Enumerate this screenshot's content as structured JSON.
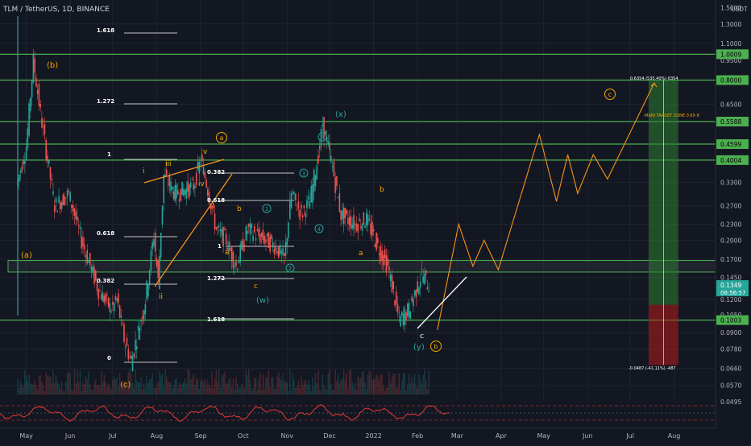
{
  "header": {
    "symbol": "TLM / TetherUS, 1D, BINANCE",
    "axis_currency": "USDT"
  },
  "colors": {
    "background": "#131722",
    "grid": "#1f2430",
    "up_candle": "#26a69a",
    "down_candle": "#ef5350",
    "level_line": "#4caf50",
    "fib_line": "#ffffff",
    "projection": "#f7931a",
    "wave_orange": "#f7a600",
    "wave_teal": "#26a69a",
    "wave_yellow": "#d4c200",
    "target_box": "#2e7d32",
    "stop_box": "#b71c1c",
    "oscillator": "#e53935"
  },
  "x_axis": {
    "labels": [
      "May",
      "Jun",
      "Jul",
      "Aug",
      "Sep",
      "Oct",
      "Nov",
      "Dec",
      "2022",
      "Feb",
      "Mar",
      "Apr",
      "May",
      "Jun",
      "Jul",
      "Aug"
    ]
  },
  "y_axis": {
    "scale": "log",
    "tick_labels": [
      "1.5000",
      "1.3000",
      "1.1000",
      "0.9500",
      "0.8000",
      "0.6500",
      "0.5588",
      "0.4599",
      "0.4004",
      "0.3300",
      "0.2700",
      "0.2300",
      "0.2000",
      "0.1700",
      "0.1450",
      "0.1200",
      "0.1050",
      "0.1003",
      "0.0900",
      "0.0780",
      "0.0660",
      "0.0570",
      "0.0495"
    ]
  },
  "price_tags": {
    "levels": [
      "1.0009",
      "0.8000",
      "0.5588",
      "0.4599",
      "0.4004",
      "0.1003"
    ],
    "current_price": "0.1349",
    "countdown": "08:56:57"
  },
  "fib_labels": [
    "1.618",
    "1.272",
    "1",
    "0.618",
    "0.382",
    "0",
    "0.382",
    "0.618",
    "1",
    "1.272",
    "1.618"
  ],
  "wave_labels": {
    "b_top": "(b)",
    "a_left": "(a)",
    "c_bottom": "(c)",
    "i": "i",
    "ii": "ii",
    "iii": "iii",
    "iv": "iv",
    "v": "v",
    "a_circle": "a",
    "b_lower": "b",
    "a_lower": "a",
    "c_lower": "c",
    "w": "(w)",
    "n1": "1",
    "n2": "2",
    "n3": "3",
    "n5": "5",
    "n4": "4",
    "x": "(x)",
    "b2": "b",
    "a2": "a",
    "c2": "c",
    "y": "(y)",
    "b_circle": "b",
    "c_circle": "c"
  },
  "annotations": {
    "target_zone": "MAIN TARGET ZONE 0.65-8",
    "top_measure": "0.6354 (535.40%) 6354",
    "bottom_measure": "-0.0487 (-41.11%) -487"
  },
  "chart_data": {
    "type": "candlestick",
    "title": "TLM / TetherUS, 1D, BINANCE",
    "y_scale": "log",
    "ylim": [
      0.0495,
      1.6
    ],
    "key_levels": [
      1.0009,
      0.8,
      0.5588,
      0.4599,
      0.4004,
      0.1003
    ],
    "current_price": 0.1349,
    "price_path": [
      {
        "date": "2021-04-25",
        "price": 0.32
      },
      {
        "date": "2021-05-02",
        "price": 0.45
      },
      {
        "date": "2021-05-07",
        "price": 0.95
      },
      {
        "date": "2021-05-12",
        "price": 0.6
      },
      {
        "date": "2021-05-22",
        "price": 0.27
      },
      {
        "date": "2021-06-01",
        "price": 0.3
      },
      {
        "date": "2021-06-10",
        "price": 0.2
      },
      {
        "date": "2021-06-22",
        "price": 0.13
      },
      {
        "date": "2021-07-01",
        "price": 0.11
      },
      {
        "date": "2021-07-05",
        "price": 0.12
      },
      {
        "date": "2021-07-10",
        "price": 0.085
      },
      {
        "date": "2021-07-15",
        "price": 0.07
      },
      {
        "date": "2021-07-25",
        "price": 0.12
      },
      {
        "date": "2021-07-31",
        "price": 0.21
      },
      {
        "date": "2021-08-03",
        "price": 0.14
      },
      {
        "date": "2021-08-07",
        "price": 0.35
      },
      {
        "date": "2021-08-15",
        "price": 0.3
      },
      {
        "date": "2021-08-28",
        "price": 0.32
      },
      {
        "date": "2021-09-02",
        "price": 0.4
      },
      {
        "date": "2021-09-06",
        "price": 0.33
      },
      {
        "date": "2021-09-13",
        "price": 0.22
      },
      {
        "date": "2021-09-20",
        "price": 0.2
      },
      {
        "date": "2021-09-27",
        "price": 0.16
      },
      {
        "date": "2021-10-05",
        "price": 0.22
      },
      {
        "date": "2021-10-15",
        "price": 0.205
      },
      {
        "date": "2021-10-25",
        "price": 0.19
      },
      {
        "date": "2021-10-31",
        "price": 0.17
      },
      {
        "date": "2021-11-05",
        "price": 0.3
      },
      {
        "date": "2021-11-12",
        "price": 0.25
      },
      {
        "date": "2021-11-18",
        "price": 0.28
      },
      {
        "date": "2021-11-25",
        "price": 0.45
      },
      {
        "date": "2021-11-27",
        "price": 0.55
      },
      {
        "date": "2021-12-03",
        "price": 0.4
      },
      {
        "date": "2021-12-10",
        "price": 0.25
      },
      {
        "date": "2021-12-20",
        "price": 0.23
      },
      {
        "date": "2021-12-28",
        "price": 0.24
      },
      {
        "date": "2022-01-05",
        "price": 0.19
      },
      {
        "date": "2022-01-12",
        "price": 0.16
      },
      {
        "date": "2022-01-20",
        "price": 0.1
      },
      {
        "date": "2022-01-27",
        "price": 0.11
      },
      {
        "date": "2022-02-05",
        "price": 0.15
      },
      {
        "date": "2022-02-10",
        "price": 0.135
      }
    ],
    "projection_path": [
      {
        "date": "2022-02-15",
        "price": 0.092
      },
      {
        "date": "2022-03-02",
        "price": 0.23
      },
      {
        "date": "2022-03-12",
        "price": 0.16
      },
      {
        "date": "2022-03-20",
        "price": 0.2
      },
      {
        "date": "2022-03-30",
        "price": 0.155
      },
      {
        "date": "2022-04-28",
        "price": 0.5
      },
      {
        "date": "2022-05-10",
        "price": 0.28
      },
      {
        "date": "2022-05-18",
        "price": 0.42
      },
      {
        "date": "2022-05-25",
        "price": 0.3
      },
      {
        "date": "2022-06-05",
        "price": 0.42
      },
      {
        "date": "2022-06-15",
        "price": 0.34
      },
      {
        "date": "2022-07-18",
        "price": 0.78
      }
    ],
    "target_range": [
      0.1145,
      0.8
    ],
    "stop_range": [
      0.068,
      0.1145
    ]
  }
}
